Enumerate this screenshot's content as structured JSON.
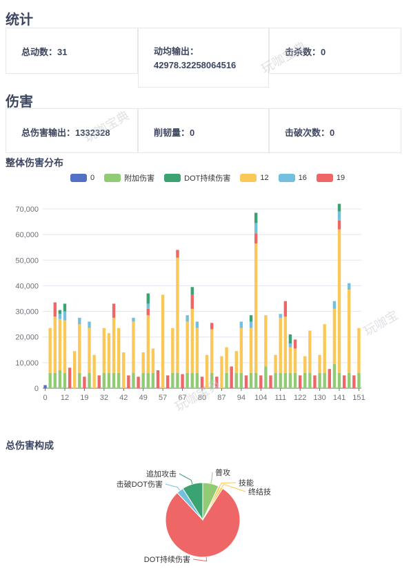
{
  "stats": {
    "title": "统计",
    "total_actions_label": "总动数：",
    "total_actions_value": "31",
    "avg_output_label": "动均输出：",
    "avg_output_value": "42978.32258064516",
    "kills_label": "击杀数：",
    "kills_value": "0"
  },
  "damage": {
    "title": "伤害",
    "total_damage_label": "总伤害输出：",
    "total_damage_value": "1332328",
    "toughness_label": "削韧量：",
    "toughness_value": "0",
    "breaks_label": "击破次数：",
    "breaks_value": "0"
  },
  "watermarks": [
    "玩咖宝典",
    "玩咖宝典",
    "玩咖宝",
    "玩咖宝典"
  ],
  "colors": {
    "s0": "#5470c6",
    "s1": "#91cc75",
    "s2": "#3ba272",
    "s3": "#fac858",
    "s4": "#73c0de",
    "s5": "#ee6666"
  },
  "chart_data": [
    {
      "type": "bar",
      "stacked": true,
      "title": "整体伤害分布",
      "legend": [
        "0",
        "附加伤害",
        "DOT持续伤害",
        "12",
        "16",
        "19"
      ],
      "legend_position": "top",
      "ylim": [
        0,
        70000
      ],
      "yticks": [
        "0",
        "10,000",
        "20,000",
        "30,000",
        "40,000",
        "50,000",
        "60,000",
        "70,000"
      ],
      "x_tick_labels": [
        "0",
        "12",
        "19",
        "32",
        "42",
        "49",
        "57",
        "67",
        "80",
        "87",
        "94",
        "104",
        "111",
        "122",
        "130",
        "141",
        "151"
      ],
      "bars": [
        [
          1200,
          0,
          0,
          0,
          0,
          0
        ],
        [
          0,
          6000,
          0,
          17500,
          0,
          0
        ],
        [
          0,
          6000,
          0,
          22000,
          0,
          5500
        ],
        [
          0,
          7000,
          0,
          20000,
          2000,
          0
        ],
        [
          0,
          6000,
          0,
          20500,
          3500,
          0
        ],
        [
          0,
          0,
          0,
          0,
          0,
          8000
        ],
        [
          0,
          0,
          0,
          14500,
          0,
          0
        ],
        [
          0,
          6000,
          0,
          19000,
          2500,
          0
        ],
        [
          0,
          0,
          0,
          0,
          0,
          4500
        ],
        [
          0,
          6000,
          0,
          17500,
          2500,
          0
        ],
        [
          0,
          0,
          0,
          13000,
          0,
          0
        ],
        [
          0,
          0,
          0,
          0,
          0,
          5000
        ],
        [
          0,
          6000,
          0,
          17500,
          0,
          0
        ],
        [
          0,
          6000,
          0,
          15500,
          0,
          0
        ],
        [
          0,
          6000,
          0,
          21500,
          0,
          5500
        ],
        [
          0,
          6000,
          0,
          17500,
          0,
          0
        ],
        [
          0,
          0,
          0,
          14000,
          0,
          0
        ],
        [
          0,
          0,
          0,
          0,
          0,
          5000
        ],
        [
          0,
          6000,
          0,
          20000,
          1500,
          0
        ],
        [
          0,
          0,
          0,
          0,
          0,
          4500
        ],
        [
          0,
          6000,
          0,
          8000,
          0,
          0
        ],
        [
          0,
          6000,
          0,
          22500,
          2000,
          2500
        ],
        [
          0,
          6000,
          0,
          9500,
          0,
          0
        ],
        [
          0,
          0,
          0,
          0,
          0,
          7000
        ],
        [
          0,
          0,
          0,
          36500,
          0,
          0
        ],
        [
          0,
          0,
          0,
          0,
          0,
          5000
        ],
        [
          0,
          6000,
          0,
          17500,
          0,
          0
        ],
        [
          0,
          6000,
          0,
          45000,
          0,
          3000
        ],
        [
          0,
          0,
          0,
          0,
          0,
          5500
        ],
        [
          0,
          6000,
          0,
          20000,
          2500,
          0
        ],
        [
          0,
          6000,
          0,
          25000,
          0,
          5500
        ],
        [
          0,
          6000,
          0,
          17500,
          2500,
          0
        ],
        [
          0,
          0,
          0,
          0,
          0,
          4500
        ],
        [
          0,
          0,
          0,
          13000,
          0,
          0
        ],
        [
          0,
          6000,
          0,
          17000,
          0,
          2500
        ],
        [
          0,
          0,
          0,
          0,
          0,
          4500
        ],
        [
          0,
          0,
          0,
          12500,
          0,
          0
        ],
        [
          0,
          6000,
          0,
          10000,
          0,
          0
        ],
        [
          0,
          0,
          0,
          0,
          0,
          8500
        ],
        [
          0,
          6000,
          0,
          8500,
          0,
          0
        ],
        [
          0,
          6000,
          0,
          17500,
          2500,
          0
        ],
        [
          0,
          0,
          0,
          0,
          0,
          5000
        ],
        [
          0,
          6000,
          0,
          17500,
          2500,
          0
        ],
        [
          0,
          6000,
          0,
          50500,
          4000,
          4000
        ],
        [
          0,
          0,
          0,
          0,
          0,
          5000
        ],
        [
          0,
          8500,
          0,
          20000,
          0,
          0
        ],
        [
          0,
          0,
          0,
          0,
          0,
          5000
        ],
        [
          0,
          6000,
          0,
          7000,
          0,
          0
        ],
        [
          0,
          6000,
          0,
          21500,
          1500,
          0
        ],
        [
          0,
          6000,
          0,
          22000,
          0,
          6000
        ],
        [
          0,
          6000,
          0,
          10000,
          1500,
          0
        ],
        [
          0,
          6000,
          0,
          9500,
          0,
          3500
        ],
        [
          0,
          0,
          0,
          0,
          0,
          5000
        ],
        [
          0,
          6000,
          0,
          6500,
          0,
          0
        ],
        [
          0,
          6000,
          0,
          16500,
          0,
          0
        ],
        [
          0,
          0,
          0,
          0,
          0,
          5000
        ],
        [
          0,
          6000,
          0,
          7000,
          0,
          0
        ],
        [
          0,
          6000,
          0,
          19000,
          0,
          0
        ],
        [
          0,
          0,
          0,
          0,
          0,
          7500
        ],
        [
          0,
          9500,
          0,
          21500,
          3000,
          0
        ],
        [
          0,
          6000,
          0,
          56000,
          3500,
          3500
        ],
        [
          0,
          0,
          0,
          0,
          0,
          5000
        ],
        [
          0,
          6000,
          0,
          32500,
          2500,
          0
        ],
        [
          0,
          0,
          0,
          0,
          0,
          5000
        ],
        [
          0,
          6000,
          0,
          17500,
          0,
          0
        ]
      ],
      "dot_segments": [
        {
          "index": 3,
          "value": 1500
        },
        {
          "index": 4,
          "value": 3000
        },
        {
          "index": 21,
          "value": 4000
        },
        {
          "index": 30,
          "value": 3000
        },
        {
          "index": 42,
          "value": 2500
        },
        {
          "index": 43,
          "value": 4000
        },
        {
          "index": 50,
          "value": 3500
        },
        {
          "index": 60,
          "value": 3000
        }
      ]
    },
    {
      "type": "pie",
      "title": "总伤害构成",
      "slices": [
        {
          "name": "普攻",
          "value": 7,
          "color": "#91cc75"
        },
        {
          "name": "技能",
          "value": 1,
          "color": "#fac858"
        },
        {
          "name": "终结技",
          "value": 1,
          "color": "#fac858"
        },
        {
          "name": "DOT持续伤害",
          "value": 79,
          "color": "#ee6666"
        },
        {
          "name": "击破DOT伤害",
          "value": 3,
          "color": "#73c0de"
        },
        {
          "name": "追加攻击",
          "value": 9,
          "color": "#3ba272"
        }
      ]
    }
  ]
}
